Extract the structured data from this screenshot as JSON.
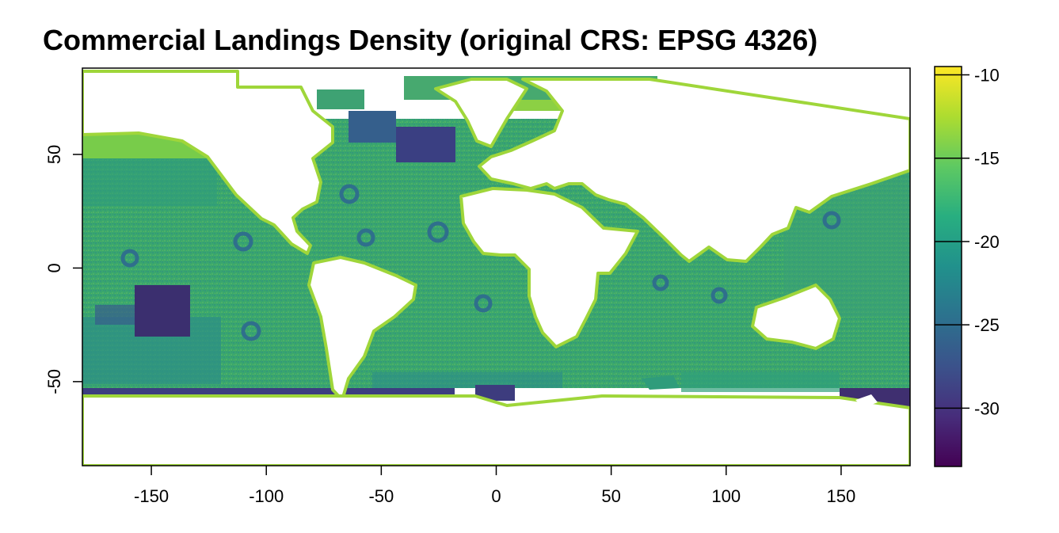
{
  "title": "Commercial Landings Density (original CRS: EPSG 4326)",
  "map": {
    "x_ticks": [
      "-150",
      "-100",
      "-50",
      "0",
      "50",
      "100",
      "150"
    ],
    "y_ticks": [
      "-50",
      "0",
      "50"
    ]
  },
  "legend": {
    "ticks": [
      "-10",
      "-15",
      "-20",
      "-25",
      "-30"
    ],
    "palette": "viridis"
  },
  "chart_data": {
    "type": "heatmap",
    "title": "Commercial Landings Density (original CRS: EPSG 4326)",
    "xlabel": "",
    "ylabel": "",
    "xlim": [
      -180,
      180
    ],
    "ylim": [
      -87,
      88
    ],
    "x_ticks": [
      -150,
      -100,
      -50,
      0,
      50,
      100,
      150
    ],
    "y_ticks": [
      -50,
      0,
      50
    ],
    "colorbar": {
      "range": [
        -33.5,
        -9.5
      ],
      "ticks": [
        -10,
        -15,
        -20,
        -25,
        -30
      ],
      "palette": "viridis",
      "colors": [
        "#440154",
        "#472d7b",
        "#3b528b",
        "#2c728e",
        "#21918c",
        "#28ae80",
        "#5ec962",
        "#addc30",
        "#fde725"
      ]
    }
  }
}
